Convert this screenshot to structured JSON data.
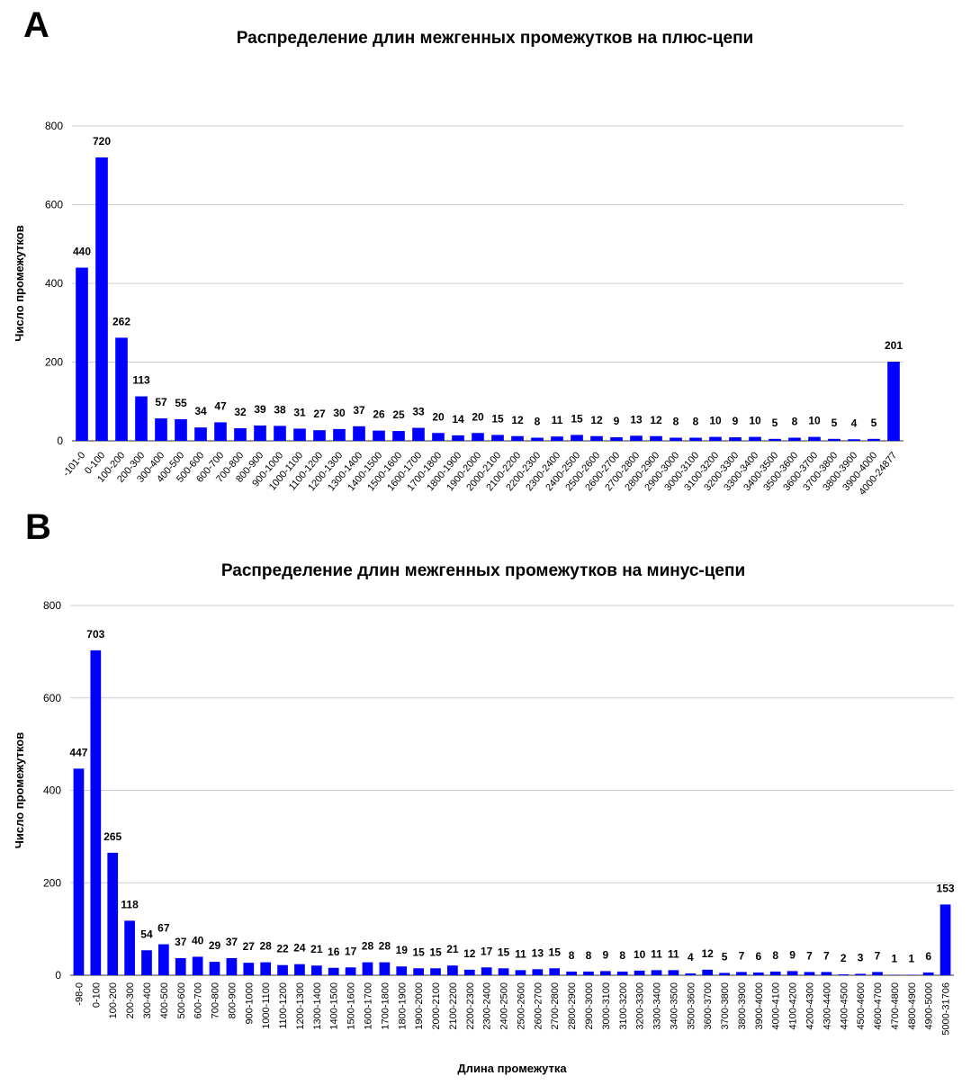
{
  "panels": {
    "a": "A",
    "b": "B"
  },
  "colors": {
    "bar": "#0000ff",
    "grid": "#cccccc",
    "axis": "#333333",
    "text": "#000000"
  },
  "chart_data": [
    {
      "type": "bar",
      "title": "Распределение длин межгенных промежутков на плюс-цепи",
      "xlabel": "",
      "ylabel": "Число промежутков",
      "ylim": [
        0,
        800
      ],
      "yticks": [
        0,
        200,
        400,
        600,
        800
      ],
      "grid": true,
      "categories": [
        "-101-0",
        "0-100",
        "100-200",
        "200-300",
        "300-400",
        "400-500",
        "500-600",
        "600-700",
        "700-800",
        "800-900",
        "900-1000",
        "1000-1100",
        "1100-1200",
        "1200-1300",
        "1300-1400",
        "1400-1500",
        "1500-1600",
        "1600-1700",
        "1700-1800",
        "1800-1900",
        "1900-2000",
        "2000-2100",
        "2100-2200",
        "2200-2300",
        "2300-2400",
        "2400-2500",
        "2500-2600",
        "2600-2700",
        "2700-2800",
        "2800-2900",
        "2900-3000",
        "3000-3100",
        "3100-3200",
        "3200-3300",
        "3300-3400",
        "3400-3500",
        "3500-3600",
        "3600-3700",
        "3700-3800",
        "3800-3900",
        "3900-4000",
        "4000-24877"
      ],
      "values": [
        440,
        720,
        262,
        113,
        57,
        55,
        34,
        47,
        32,
        39,
        38,
        31,
        27,
        30,
        37,
        26,
        25,
        33,
        20,
        14,
        20,
        15,
        12,
        8,
        11,
        15,
        12,
        9,
        13,
        12,
        8,
        8,
        10,
        9,
        10,
        5,
        8,
        10,
        5,
        4,
        5,
        201
      ]
    },
    {
      "type": "bar",
      "title": "Распределение длин межгенных промежутков на минус-цепи",
      "xlabel": "Длина промежутка",
      "ylabel": "Число промежутков",
      "ylim": [
        0,
        800
      ],
      "yticks": [
        0,
        200,
        400,
        600,
        800
      ],
      "grid": true,
      "categories": [
        "-98-0",
        "0-100",
        "100-200",
        "200-300",
        "300-400",
        "400-500",
        "500-600",
        "600-700",
        "700-800",
        "800-900",
        "900-1000",
        "1000-1100",
        "1100-1200",
        "1200-1300",
        "1300-1400",
        "1400-1500",
        "1500-1600",
        "1600-1700",
        "1700-1800",
        "1800-1900",
        "1900-2000",
        "2000-2100",
        "2100-2200",
        "2200-2300",
        "2300-2400",
        "2400-2500",
        "2500-2600",
        "2600-2700",
        "2700-2800",
        "2800-2900",
        "2900-3000",
        "3000-3100",
        "3100-3200",
        "3200-3300",
        "3300-3400",
        "3400-3500",
        "3500-3600",
        "3600-3700",
        "3700-3800",
        "3800-3900",
        "3900-4000",
        "4000-4100",
        "4100-4200",
        "4200-4300",
        "4300-4400",
        "4400-4500",
        "4500-4600",
        "4600-4700",
        "4700-4800",
        "4800-4900",
        "4900-5000",
        "5000-31706"
      ],
      "values": [
        447,
        703,
        265,
        118,
        54,
        67,
        37,
        40,
        29,
        37,
        27,
        28,
        22,
        24,
        21,
        16,
        17,
        28,
        28,
        19,
        15,
        15,
        21,
        12,
        17,
        15,
        11,
        13,
        15,
        8,
        8,
        9,
        8,
        10,
        11,
        11,
        4,
        12,
        5,
        7,
        6,
        8,
        9,
        7,
        7,
        2,
        3,
        7,
        1,
        1,
        6,
        153
      ]
    }
  ]
}
